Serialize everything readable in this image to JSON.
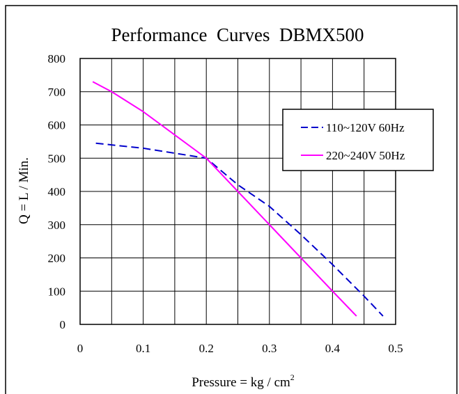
{
  "chart_data": {
    "type": "line",
    "title": "Performance  Curves  DBMX500",
    "xlabel": "Pressure = kg / cm",
    "xlabel_superscript": "2",
    "ylabel": "Q = L / Min.",
    "xlim": [
      0,
      0.5
    ],
    "ylim": [
      0,
      800
    ],
    "x_ticks": [
      0,
      0.1,
      0.2,
      0.3,
      0.4,
      0.5
    ],
    "x_tick_labels": [
      "0",
      "0.1",
      "0.2",
      "0.3",
      "0.4",
      "0.5"
    ],
    "y_ticks": [
      0,
      100,
      200,
      300,
      400,
      500,
      600,
      700,
      800
    ],
    "y_tick_labels": [
      "0",
      "100",
      "200",
      "300",
      "400",
      "500",
      "600",
      "700",
      "800"
    ],
    "x_grid_step": 0.05,
    "y_grid_step": 100,
    "grid": true,
    "legend_position": "right",
    "series": [
      {
        "name": "110~120V 60Hz",
        "color": "#0000cc",
        "style": "dashed",
        "x": [
          0.025,
          0.1,
          0.2,
          0.25,
          0.3,
          0.35,
          0.4,
          0.45,
          0.48
        ],
        "y": [
          545,
          530,
          500,
          420,
          355,
          270,
          180,
          85,
          25
        ]
      },
      {
        "name": "220~240V 50Hz",
        "color": "#ff00ff",
        "style": "solid",
        "x": [
          0.02,
          0.05,
          0.1,
          0.15,
          0.2,
          0.25,
          0.3,
          0.35,
          0.4,
          0.438
        ],
        "y": [
          730,
          700,
          640,
          570,
          500,
          400,
          300,
          200,
          100,
          25
        ]
      }
    ]
  }
}
